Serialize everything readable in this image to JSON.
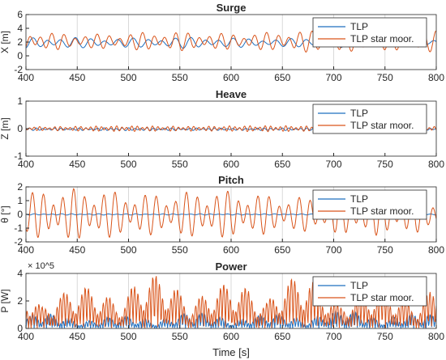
{
  "figure": {
    "xlabel": "Time [s]",
    "colors": {
      "tlp": "#1f6fbf",
      "star": "#d9541a",
      "axis": "#262626",
      "grid": "#d9d9d9",
      "legend_border": "#262626"
    }
  },
  "chart_data": [
    {
      "type": "line",
      "title": "Surge",
      "ylabel": "X [m]",
      "xlim": [
        400,
        800
      ],
      "ylim": [
        -2,
        6
      ],
      "yticks": [
        -2,
        0,
        2,
        4,
        6
      ],
      "xticks": [
        400,
        450,
        500,
        550,
        600,
        650,
        700,
        750,
        800
      ],
      "xtick_labels": [
        "400",
        "450",
        "500",
        "550",
        "600",
        "650",
        "700",
        "750",
        "800"
      ],
      "grid": "vertical",
      "legend": "top-right",
      "series": [
        {
          "name": "TLP",
          "color": "#1f6fbf",
          "base": 1.9,
          "amp": 0.75,
          "seed": 3,
          "period": 14
        },
        {
          "name": "TLP star moor.",
          "color": "#d9541a",
          "base": 2.1,
          "amp": 1.5,
          "seed": 7,
          "period": 11
        }
      ]
    },
    {
      "type": "line",
      "title": "Heave",
      "ylabel": "Z [m]",
      "xlim": [
        400,
        800
      ],
      "ylim": [
        -1,
        1
      ],
      "yticks": [
        -1,
        0,
        1
      ],
      "xticks": [
        400,
        450,
        500,
        550,
        600,
        650,
        700,
        750,
        800
      ],
      "xtick_labels": [
        "400",
        "450",
        "500",
        "550",
        "600",
        "650",
        "700",
        "750",
        "800"
      ],
      "grid": "none",
      "legend": "top-right",
      "series": [
        {
          "name": "TLP",
          "color": "#1f6fbf",
          "base": -0.02,
          "amp": 0.05,
          "seed": 11,
          "period": 6
        },
        {
          "name": "TLP star moor.",
          "color": "#d9541a",
          "base": 0.0,
          "amp": 0.1,
          "seed": 13,
          "period": 5
        }
      ]
    },
    {
      "type": "line",
      "title": "Pitch",
      "ylabel": "θ [°]",
      "xlim": [
        400,
        800
      ],
      "ylim": [
        -2,
        2
      ],
      "yticks": [
        -2,
        -1,
        0,
        1,
        2
      ],
      "xticks": [
        400,
        450,
        500,
        550,
        600,
        650,
        700,
        750,
        800
      ],
      "xtick_labels": [
        "400",
        "450",
        "500",
        "550",
        "600",
        "650",
        "700",
        "750",
        "800"
      ],
      "grid": "vertical",
      "legend": "top-right",
      "series": [
        {
          "name": "TLP",
          "color": "#1f6fbf",
          "base": 0.0,
          "amp": 0.05,
          "seed": 17,
          "period": 9
        },
        {
          "name": "TLP star moor.",
          "color": "#d9541a",
          "base": 0.0,
          "amp": 1.7,
          "seed": 19,
          "period": 10
        }
      ]
    },
    {
      "type": "line",
      "title": "Power",
      "ylabel": "P [W]",
      "exponent": "× 10^5",
      "xlim": [
        400,
        800
      ],
      "ylim": [
        0,
        4
      ],
      "yticks": [
        0,
        2,
        4
      ],
      "xticks": [
        400,
        450,
        500,
        550,
        600,
        650,
        700,
        750,
        800
      ],
      "xtick_labels": [
        "400",
        "450",
        "500",
        "550",
        "600",
        "650",
        "700",
        "750",
        "800"
      ],
      "grid": "vertical",
      "legend": "top-right",
      "series": [
        {
          "name": "TLP",
          "color": "#1f6fbf",
          "base": 0.0,
          "amp": 1.2,
          "seed": 23,
          "period": 5,
          "positive": true
        },
        {
          "name": "TLP star moor.",
          "color": "#d9541a",
          "base": 0.0,
          "amp": 3.6,
          "seed": 29,
          "period": 6,
          "positive": true
        }
      ]
    }
  ]
}
